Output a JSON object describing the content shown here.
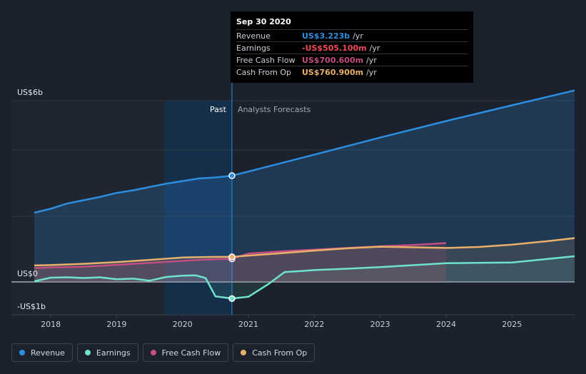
{
  "chart_data": {
    "type": "line",
    "y_axis": {
      "min": -1,
      "max": 6,
      "labels": [
        {
          "value": 6,
          "text": "US$6b"
        },
        {
          "value": 0,
          "text": "US$0"
        },
        {
          "value": -1,
          "text": "-US$1b"
        }
      ]
    },
    "x_axis": {
      "min": 2017.75,
      "max": 2025.95,
      "ticks": [
        "2018",
        "2019",
        "2020",
        "2021",
        "2022",
        "2023",
        "2024",
        "2025"
      ]
    },
    "past_label": "Past",
    "forecast_label": "Analysts Forecasts",
    "divider_x": 2020.75,
    "series": [
      {
        "name": "Revenue",
        "color": "#2d8ee0",
        "points": [
          [
            2017.75,
            2.1
          ],
          [
            2018.0,
            2.22
          ],
          [
            2018.25,
            2.38
          ],
          [
            2018.5,
            2.48
          ],
          [
            2018.75,
            2.58
          ],
          [
            2019.0,
            2.7
          ],
          [
            2019.25,
            2.78
          ],
          [
            2019.5,
            2.88
          ],
          [
            2019.75,
            2.98
          ],
          [
            2020.0,
            3.06
          ],
          [
            2020.25,
            3.14
          ],
          [
            2020.5,
            3.17
          ],
          [
            2020.75,
            3.223
          ],
          [
            2021.0,
            3.35
          ],
          [
            2022.0,
            3.86
          ],
          [
            2023.0,
            4.38
          ],
          [
            2024.0,
            4.88
          ],
          [
            2025.0,
            5.36
          ],
          [
            2025.95,
            5.81
          ]
        ]
      },
      {
        "name": "Earnings",
        "color": "#6fe2cb",
        "points": [
          [
            2017.75,
            0.02
          ],
          [
            2018.0,
            0.13
          ],
          [
            2018.25,
            0.14
          ],
          [
            2018.5,
            0.12
          ],
          [
            2018.75,
            0.14
          ],
          [
            2019.0,
            0.08
          ],
          [
            2019.25,
            0.1
          ],
          [
            2019.5,
            0.04
          ],
          [
            2019.75,
            0.15
          ],
          [
            2020.0,
            0.19
          ],
          [
            2020.2,
            0.2
          ],
          [
            2020.35,
            0.12
          ],
          [
            2020.5,
            -0.44
          ],
          [
            2020.75,
            -0.505
          ],
          [
            2021.0,
            -0.45
          ],
          [
            2021.3,
            -0.07
          ],
          [
            2021.55,
            0.3
          ],
          [
            2021.8,
            0.33
          ],
          [
            2022.0,
            0.36
          ],
          [
            2022.5,
            0.4
          ],
          [
            2023.0,
            0.45
          ],
          [
            2024.0,
            0.57
          ],
          [
            2025.0,
            0.59
          ],
          [
            2025.95,
            0.78
          ]
        ]
      },
      {
        "name": "Free Cash Flow",
        "color": "#c44d82",
        "points": [
          [
            2017.75,
            0.42
          ],
          [
            2018.0,
            0.44
          ],
          [
            2018.5,
            0.46
          ],
          [
            2019.0,
            0.52
          ],
          [
            2019.5,
            0.58
          ],
          [
            2020.0,
            0.64
          ],
          [
            2020.5,
            0.69
          ],
          [
            2020.75,
            0.7006
          ],
          [
            2021.0,
            0.86
          ],
          [
            2021.5,
            0.93
          ],
          [
            2022.0,
            0.98
          ],
          [
            2022.5,
            1.03
          ],
          [
            2023.0,
            1.08
          ],
          [
            2023.5,
            1.12
          ],
          [
            2024.0,
            1.18
          ]
        ]
      },
      {
        "name": "Cash From Op",
        "color": "#e8b06a",
        "points": [
          [
            2017.75,
            0.5
          ],
          [
            2018.0,
            0.51
          ],
          [
            2018.5,
            0.55
          ],
          [
            2019.0,
            0.6
          ],
          [
            2019.5,
            0.67
          ],
          [
            2020.0,
            0.74
          ],
          [
            2020.5,
            0.76
          ],
          [
            2020.75,
            0.7609
          ],
          [
            2021.0,
            0.8
          ],
          [
            2021.5,
            0.87
          ],
          [
            2022.0,
            0.95
          ],
          [
            2022.5,
            1.02
          ],
          [
            2023.0,
            1.07
          ],
          [
            2023.5,
            1.05
          ],
          [
            2024.0,
            1.03
          ],
          [
            2024.5,
            1.06
          ],
          [
            2025.0,
            1.13
          ],
          [
            2025.5,
            1.23
          ],
          [
            2025.95,
            1.33
          ]
        ]
      }
    ]
  },
  "tooltip": {
    "date": "Sep 30 2020",
    "rows": [
      {
        "label": "Revenue",
        "value": "US$3.223b",
        "unit": "/yr",
        "color": "#2d8ee0"
      },
      {
        "label": "Earnings",
        "value": "-US$505.100m",
        "unit": "/yr",
        "color": "#f04b55"
      },
      {
        "label": "Free Cash Flow",
        "value": "US$700.600m",
        "unit": "/yr",
        "color": "#c44d82"
      },
      {
        "label": "Cash From Op",
        "value": "US$760.900m",
        "unit": "/yr",
        "color": "#e8b06a"
      }
    ]
  },
  "legend": [
    {
      "label": "Revenue",
      "color": "#2d8ee0"
    },
    {
      "label": "Earnings",
      "color": "#6fe2cb"
    },
    {
      "label": "Free Cash Flow",
      "color": "#c44d82"
    },
    {
      "label": "Cash From Op",
      "color": "#e8b06a"
    }
  ]
}
